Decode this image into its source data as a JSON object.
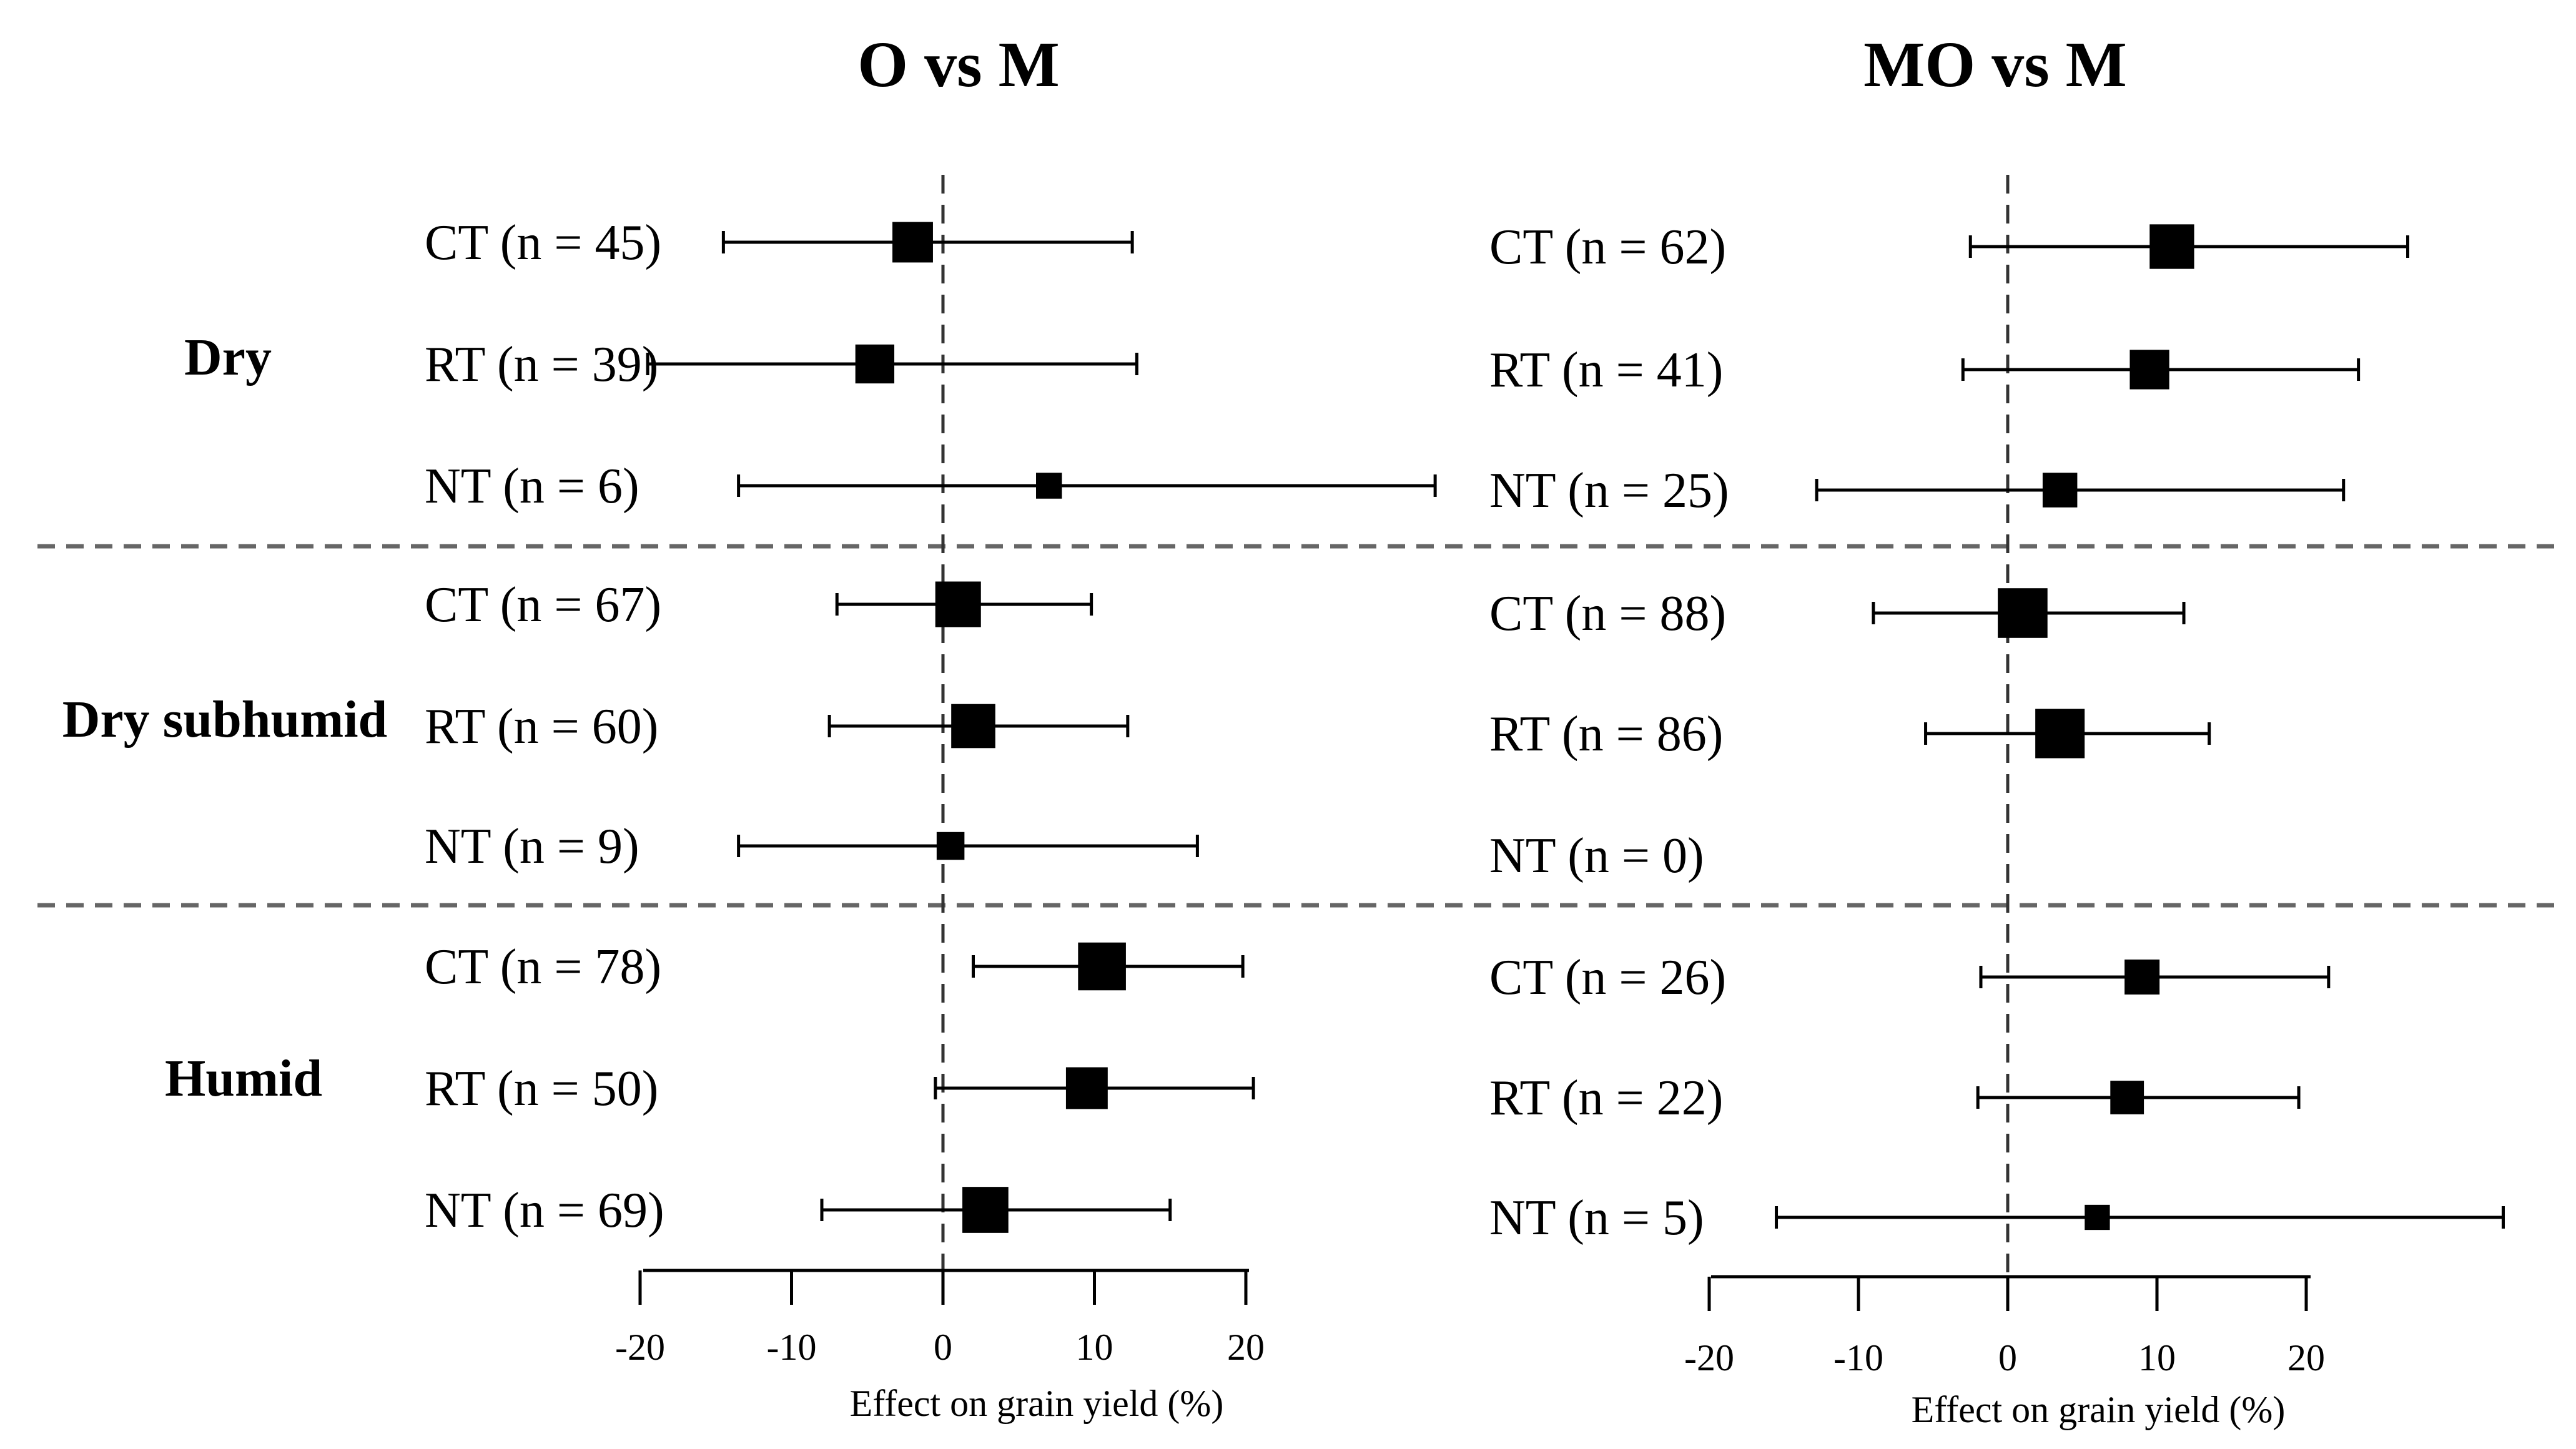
{
  "chart_data": {
    "type": "forest",
    "groups": [
      "Dry",
      "Dry subhumid",
      "Humid"
    ],
    "panels": [
      {
        "title": "O vs M",
        "xlabel": "Effect on grain yield (%)",
        "xticks": [
          "-20",
          "-10",
          "0",
          "10",
          "20"
        ],
        "rows": [
          {
            "group": "Dry",
            "label": "CT (n = 45)",
            "n": 45,
            "mean": -2.0,
            "lo": -14.5,
            "hi": 12.5
          },
          {
            "group": "Dry",
            "label": "RT (n = 39)",
            "n": 39,
            "mean": -4.5,
            "lo": -19.5,
            "hi": 12.8
          },
          {
            "group": "Dry",
            "label": "NT (n = 6)",
            "n": 6,
            "mean": 7.0,
            "lo": -13.5,
            "hi": 32.5
          },
          {
            "group": "Dry subhumid",
            "label": "CT (n = 67)",
            "n": 67,
            "mean": 1.0,
            "lo": -7.0,
            "hi": 9.8
          },
          {
            "group": "Dry subhumid",
            "label": "RT (n = 60)",
            "n": 60,
            "mean": 2.0,
            "lo": -7.5,
            "hi": 12.2
          },
          {
            "group": "Dry subhumid",
            "label": "NT (n = 9)",
            "n": 9,
            "mean": 0.5,
            "lo": -13.5,
            "hi": 16.8
          },
          {
            "group": "Humid",
            "label": "CT (n = 78)",
            "n": 78,
            "mean": 10.5,
            "lo": 2.0,
            "hi": 19.8
          },
          {
            "group": "Humid",
            "label": "RT (n = 50)",
            "n": 50,
            "mean": 9.5,
            "lo": -0.5,
            "hi": 20.5
          },
          {
            "group": "Humid",
            "label": "NT (n = 69)",
            "n": 69,
            "mean": 2.8,
            "lo": -8.0,
            "hi": 15.0
          }
        ]
      },
      {
        "title": "MO vs M",
        "xlabel": "Effect on grain yield (%)",
        "xticks": [
          "-20",
          "-10",
          "0",
          "10",
          "20"
        ],
        "rows": [
          {
            "group": "Dry",
            "label": "CT (n = 62)",
            "n": 62,
            "mean": 11.0,
            "lo": -2.5,
            "hi": 26.8
          },
          {
            "group": "Dry",
            "label": "RT (n = 41)",
            "n": 41,
            "mean": 9.5,
            "lo": -3.0,
            "hi": 23.5
          },
          {
            "group": "Dry",
            "label": "NT (n = 25)",
            "n": 25,
            "mean": 3.5,
            "lo": -12.8,
            "hi": 22.5
          },
          {
            "group": "Dry subhumid",
            "label": "CT (n = 88)",
            "n": 88,
            "mean": 1.0,
            "lo": -9.0,
            "hi": 11.8
          },
          {
            "group": "Dry subhumid",
            "label": "RT (n = 86)",
            "n": 86,
            "mean": 3.5,
            "lo": -5.5,
            "hi": 13.5
          },
          {
            "group": "Dry subhumid",
            "label": "NT (n = 0)",
            "n": 0,
            "mean": null,
            "lo": null,
            "hi": null
          },
          {
            "group": "Humid",
            "label": "CT (n = 26)",
            "n": 26,
            "mean": 9.0,
            "lo": -1.8,
            "hi": 21.5
          },
          {
            "group": "Humid",
            "label": "RT (n = 22)",
            "n": 22,
            "mean": 8.0,
            "lo": -2.0,
            "hi": 19.5
          },
          {
            "group": "Humid",
            "label": "NT (n = 5)",
            "n": 5,
            "mean": 6.0,
            "lo": -15.5,
            "hi": 33.2
          }
        ]
      }
    ]
  }
}
